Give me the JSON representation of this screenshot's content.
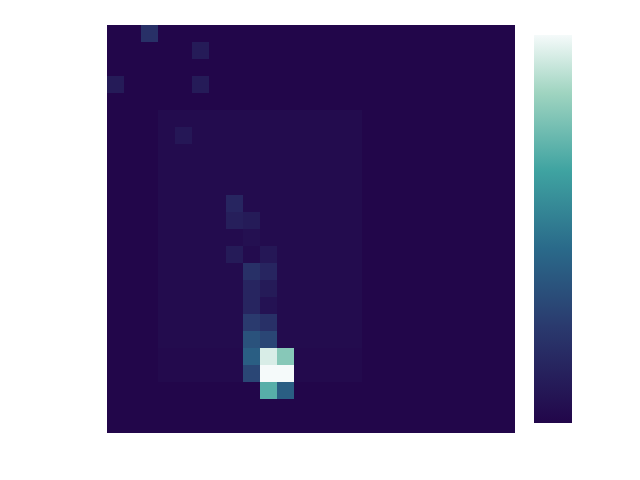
{
  "chart_data": {
    "type": "heatmap",
    "cells": [
      [
        0,
        0,
        0.2,
        0,
        0,
        0,
        0,
        0,
        0,
        0,
        0,
        0,
        0,
        0,
        0,
        0,
        0,
        0,
        0,
        0,
        0,
        0,
        0,
        0
      ],
      [
        0,
        0,
        0,
        0,
        0,
        0.1,
        0,
        0,
        0,
        0,
        0,
        0,
        0,
        0,
        0,
        0,
        0,
        0,
        0,
        0,
        0,
        0,
        0,
        0
      ],
      [
        0,
        0,
        0,
        0,
        0,
        0,
        0,
        0,
        0,
        0,
        0,
        0,
        0,
        0,
        0,
        0,
        0,
        0,
        0,
        0,
        0,
        0,
        0,
        0
      ],
      [
        0.1,
        0,
        0,
        0,
        0,
        0.1,
        0,
        0,
        0,
        0,
        0,
        0,
        0,
        0,
        0,
        0,
        0,
        0,
        0,
        0,
        0,
        0,
        0,
        0
      ],
      [
        0,
        0,
        0,
        0,
        0,
        0,
        0,
        0,
        0,
        0,
        0,
        0,
        0,
        0,
        0,
        0,
        0,
        0,
        0,
        0,
        0,
        0,
        0,
        0
      ],
      [
        0,
        0,
        0,
        0.03,
        0.03,
        0.03,
        0.03,
        0.03,
        0.03,
        0.03,
        0.03,
        0.03,
        0.03,
        0.03,
        0.03,
        0,
        0,
        0,
        0,
        0,
        0,
        0,
        0,
        0
      ],
      [
        0,
        0,
        0,
        0.03,
        0.08,
        0.03,
        0.03,
        0.03,
        0.03,
        0.03,
        0.03,
        0.03,
        0.03,
        0.03,
        0.03,
        0,
        0,
        0,
        0,
        0,
        0,
        0,
        0,
        0
      ],
      [
        0,
        0,
        0,
        0.03,
        0.03,
        0.03,
        0.03,
        0.03,
        0.03,
        0.03,
        0.03,
        0.03,
        0.03,
        0.03,
        0.03,
        0,
        0,
        0,
        0,
        0,
        0,
        0,
        0,
        0
      ],
      [
        0,
        0,
        0,
        0.03,
        0.03,
        0.03,
        0.03,
        0.03,
        0.03,
        0.03,
        0.03,
        0.03,
        0.03,
        0.03,
        0.03,
        0,
        0,
        0,
        0,
        0,
        0,
        0,
        0,
        0
      ],
      [
        0,
        0,
        0,
        0.03,
        0.03,
        0.03,
        0.03,
        0.03,
        0.03,
        0.03,
        0.03,
        0.03,
        0.03,
        0.03,
        0.03,
        0,
        0,
        0,
        0,
        0,
        0,
        0,
        0,
        0
      ],
      [
        0,
        0,
        0,
        0.03,
        0.03,
        0.03,
        0.03,
        0.15,
        0.03,
        0.03,
        0.03,
        0.03,
        0.03,
        0.03,
        0.03,
        0,
        0,
        0,
        0,
        0,
        0,
        0,
        0,
        0
      ],
      [
        0,
        0,
        0,
        0.03,
        0.03,
        0.03,
        0.03,
        0.12,
        0.1,
        0.03,
        0.03,
        0.03,
        0.03,
        0.03,
        0.03,
        0,
        0,
        0,
        0,
        0,
        0,
        0,
        0,
        0
      ],
      [
        0,
        0,
        0,
        0.03,
        0.03,
        0.03,
        0.03,
        0.03,
        0.05,
        0.03,
        0.03,
        0.03,
        0.03,
        0.03,
        0.03,
        0,
        0,
        0,
        0,
        0,
        0,
        0,
        0,
        0
      ],
      [
        0,
        0,
        0,
        0.03,
        0.03,
        0.03,
        0.03,
        0.1,
        0.03,
        0.08,
        0.03,
        0.03,
        0.03,
        0.03,
        0.03,
        0,
        0,
        0,
        0,
        0,
        0,
        0,
        0,
        0
      ],
      [
        0,
        0,
        0,
        0.03,
        0.03,
        0.03,
        0.03,
        0.03,
        0.2,
        0.15,
        0.03,
        0.03,
        0.03,
        0.03,
        0.03,
        0,
        0,
        0,
        0,
        0,
        0,
        0,
        0,
        0
      ],
      [
        0,
        0,
        0,
        0.03,
        0.03,
        0.03,
        0.03,
        0.03,
        0.15,
        0.1,
        0.03,
        0.03,
        0.03,
        0.03,
        0.03,
        0,
        0,
        0,
        0,
        0,
        0,
        0,
        0,
        0
      ],
      [
        0,
        0,
        0,
        0.03,
        0.03,
        0.03,
        0.03,
        0.03,
        0.15,
        0.06,
        0.03,
        0.03,
        0.03,
        0.03,
        0.03,
        0,
        0,
        0,
        0,
        0,
        0,
        0,
        0,
        0
      ],
      [
        0,
        0,
        0,
        0.03,
        0.03,
        0.03,
        0.03,
        0.03,
        0.25,
        0.2,
        0.03,
        0.03,
        0.03,
        0.03,
        0.03,
        0,
        0,
        0,
        0,
        0,
        0,
        0,
        0,
        0
      ],
      [
        0,
        0,
        0,
        0.03,
        0.03,
        0.03,
        0.03,
        0.03,
        0.35,
        0.3,
        0.03,
        0.03,
        0.03,
        0.03,
        0.03,
        0,
        0,
        0,
        0,
        0,
        0,
        0,
        0,
        0
      ],
      [
        0,
        0,
        0,
        0.02,
        0.02,
        0.02,
        0.02,
        0.02,
        0.4,
        0.95,
        0.8,
        0.02,
        0.02,
        0.02,
        0.02,
        0,
        0,
        0,
        0,
        0,
        0,
        0,
        0,
        0
      ],
      [
        0,
        0,
        0,
        0.02,
        0.02,
        0.02,
        0.02,
        0.02,
        0.3,
        1,
        1,
        0.02,
        0.02,
        0.02,
        0.02,
        0,
        0,
        0,
        0,
        0,
        0,
        0,
        0,
        0
      ],
      [
        0,
        0,
        0,
        0,
        0,
        0,
        0,
        0,
        0,
        0.7,
        0.4,
        0,
        0,
        0,
        0,
        0,
        0,
        0,
        0,
        0,
        0,
        0,
        0,
        0
      ],
      [
        0,
        0,
        0,
        0,
        0,
        0,
        0,
        0,
        0,
        0,
        0,
        0,
        0,
        0,
        0,
        0,
        0,
        0,
        0,
        0,
        0,
        0,
        0,
        0
      ],
      [
        0,
        0,
        0,
        0,
        0,
        0,
        0,
        0,
        0,
        0,
        0,
        0,
        0,
        0,
        0,
        0,
        0,
        0,
        0,
        0,
        0,
        0,
        0,
        0
      ]
    ],
    "zlim": [
      0,
      1
    ],
    "tick_labels": false
  }
}
